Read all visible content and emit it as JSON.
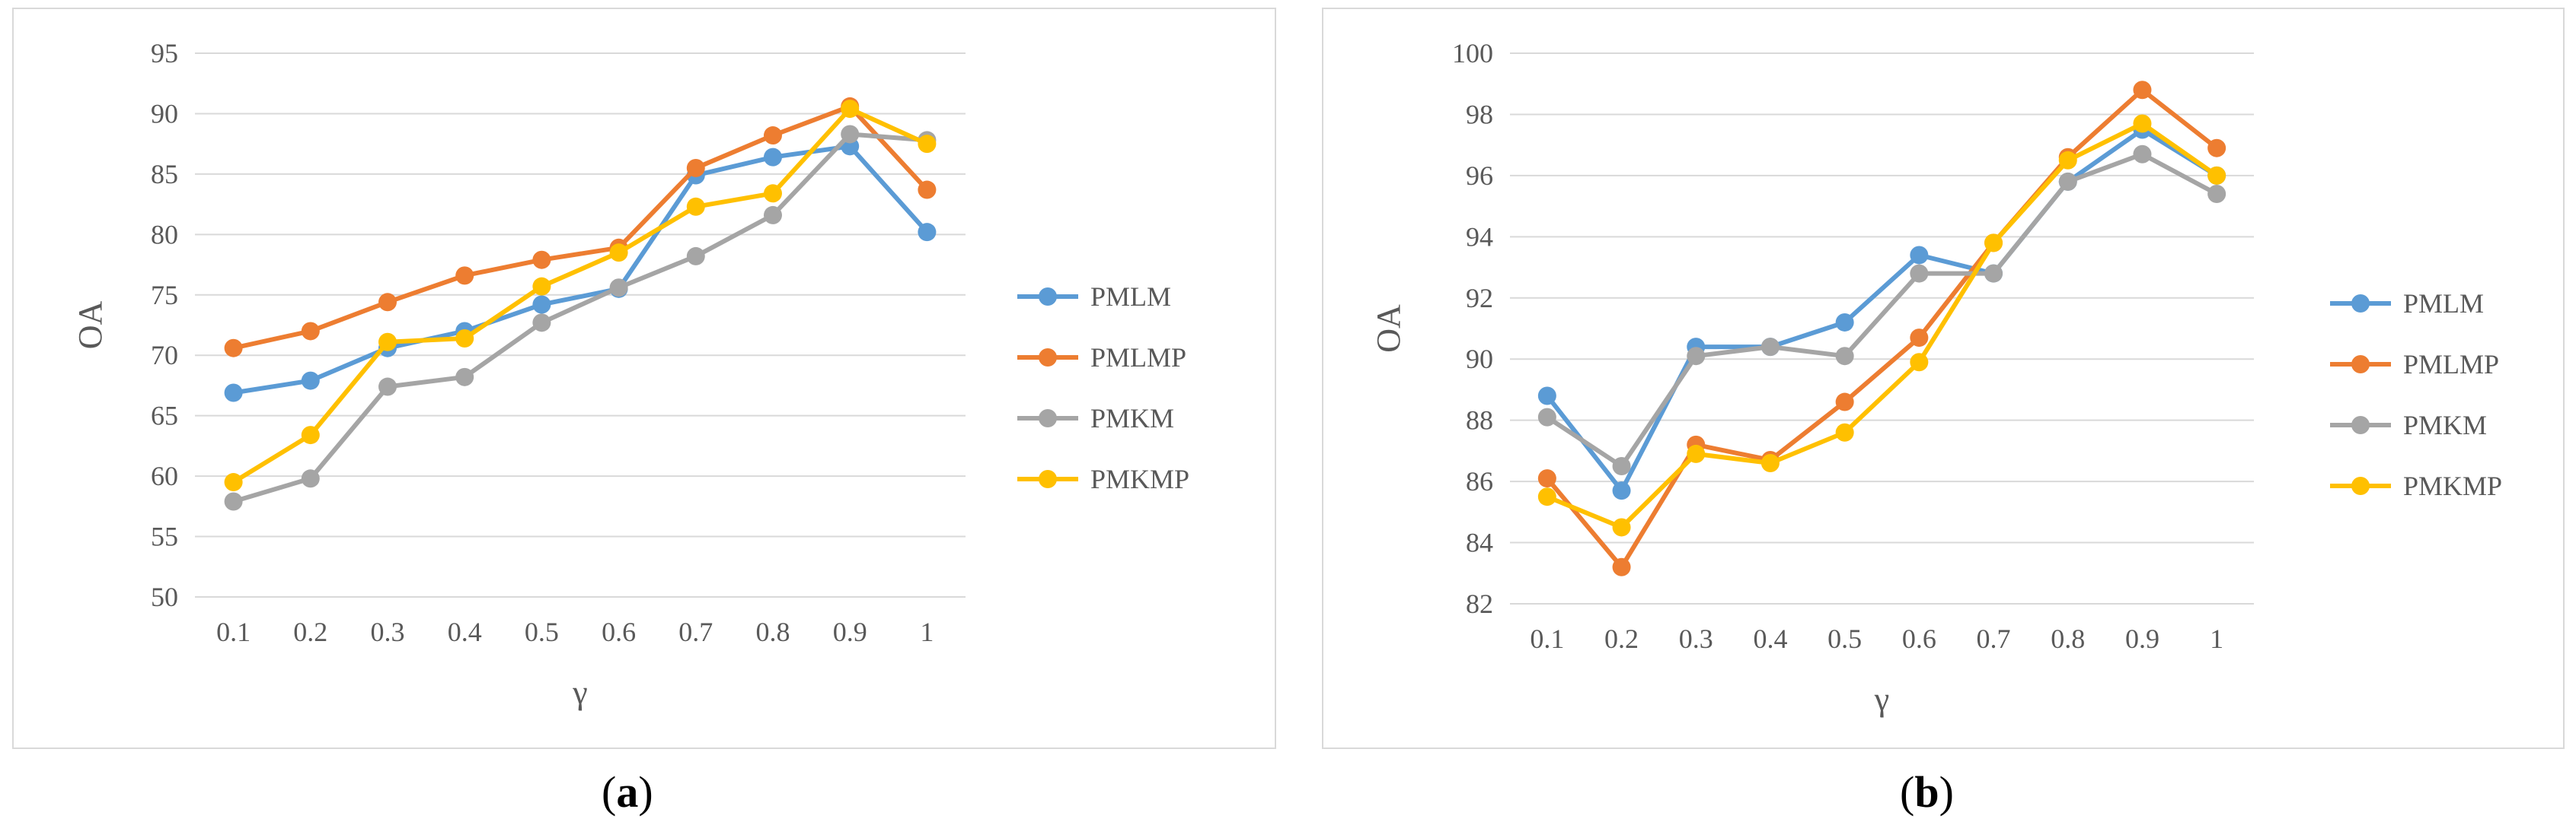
{
  "colors": {
    "PMLM": "#5b9bd5",
    "PMLMP": "#ed7d31",
    "PMKM": "#a5a5a5",
    "PMKMP": "#ffc000",
    "grid": "#d9d9d9",
    "tick_text": "#595959"
  },
  "captions": [
    "a",
    "b"
  ],
  "chart_data": [
    {
      "type": "line",
      "title": "",
      "xlabel": "γ",
      "ylabel": "OA",
      "categories": [
        "0.1",
        "0.2",
        "0.3",
        "0.4",
        "0.5",
        "0.6",
        "0.7",
        "0.8",
        "0.9",
        "1"
      ],
      "ylim": [
        50,
        95
      ],
      "yticks": [
        "50",
        "55",
        "60",
        "65",
        "70",
        "75",
        "80",
        "85",
        "90",
        "95"
      ],
      "grid": true,
      "legend": "right",
      "series": [
        {
          "name": "PMLM",
          "values": [
            66.9,
            67.9,
            70.6,
            72.0,
            74.2,
            75.5,
            84.9,
            86.4,
            87.3,
            80.2
          ]
        },
        {
          "name": "PMLMP",
          "values": [
            70.6,
            72.0,
            74.4,
            76.6,
            77.9,
            78.9,
            85.5,
            88.2,
            90.6,
            83.7
          ]
        },
        {
          "name": "PMKM",
          "values": [
            57.9,
            59.8,
            67.4,
            68.2,
            72.7,
            75.6,
            78.2,
            81.6,
            88.3,
            87.8
          ]
        },
        {
          "name": "PMKMP",
          "values": [
            59.5,
            63.4,
            71.1,
            71.4,
            75.7,
            78.5,
            82.3,
            83.4,
            90.4,
            87.5
          ]
        }
      ]
    },
    {
      "type": "line",
      "title": "",
      "xlabel": "γ",
      "ylabel": "OA",
      "categories": [
        "0.1",
        "0.2",
        "0.3",
        "0.4",
        "0.5",
        "0.6",
        "0.7",
        "0.8",
        "0.9",
        "1"
      ],
      "ylim": [
        82,
        100
      ],
      "yticks": [
        "82",
        "84",
        "86",
        "88",
        "90",
        "92",
        "94",
        "96",
        "98",
        "100"
      ],
      "grid": true,
      "legend": "right",
      "series": [
        {
          "name": "PMLM",
          "values": [
            88.8,
            85.7,
            90.4,
            90.4,
            91.2,
            93.4,
            92.8,
            95.8,
            97.5,
            96.0
          ]
        },
        {
          "name": "PMLMP",
          "values": [
            86.1,
            83.2,
            87.2,
            86.7,
            88.6,
            90.7,
            93.8,
            96.6,
            98.8,
            96.9
          ]
        },
        {
          "name": "PMKM",
          "values": [
            88.1,
            86.5,
            90.1,
            90.4,
            90.1,
            92.8,
            92.8,
            95.8,
            96.7,
            95.4
          ]
        },
        {
          "name": "PMKMP",
          "values": [
            85.5,
            84.5,
            86.9,
            86.6,
            87.6,
            89.9,
            93.8,
            96.5,
            97.7,
            96.0
          ]
        }
      ]
    }
  ]
}
